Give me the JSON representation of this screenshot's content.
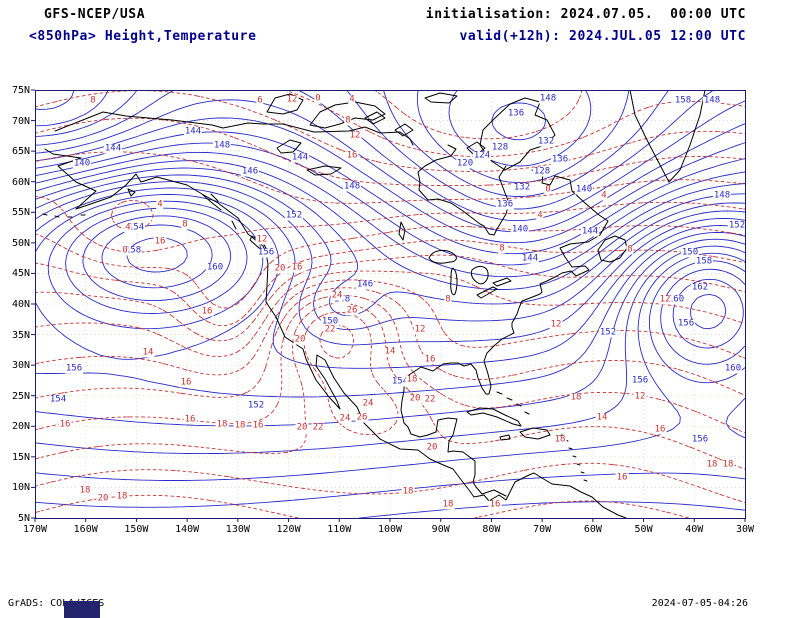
{
  "header": {
    "model": "GFS-NCEP/USA",
    "field": "<850hPa> Height,Temperature",
    "init": "initialisation: 2024.07.05.  00:00 UTC",
    "valid": "valid(+12h): 2024.JUL.05 12:00 UTC"
  },
  "map": {
    "y_ticks": [
      "75N",
      "70N",
      "65N",
      "60N",
      "55N",
      "50N",
      "45N",
      "40N",
      "35N",
      "30N",
      "25N",
      "20N",
      "15N",
      "10N",
      "5N"
    ],
    "x_ticks": [
      "170W",
      "160W",
      "150W",
      "140W",
      "130W",
      "120W",
      "110W",
      "100W",
      "90W",
      "80W",
      "70W",
      "60W",
      "50W",
      "40W",
      "30W"
    ]
  },
  "labels": {
    "height": [
      [
        "144",
        78,
        59
      ],
      [
        "140",
        47,
        74
      ],
      [
        "144",
        158,
        42
      ],
      [
        "148",
        187,
        56
      ],
      [
        "146",
        215,
        82
      ],
      [
        "144",
        265,
        68
      ],
      [
        "148",
        317,
        97
      ],
      [
        "152",
        259,
        126
      ],
      [
        "136",
        481,
        24
      ],
      [
        "132",
        511,
        52
      ],
      [
        "128",
        465,
        58
      ],
      [
        "124",
        447,
        66
      ],
      [
        "120",
        430,
        74
      ],
      [
        "136",
        525,
        70
      ],
      [
        "140",
        549,
        100
      ],
      [
        "144",
        555,
        142
      ],
      [
        "148",
        513,
        9
      ],
      [
        "158",
        648,
        11
      ],
      [
        "148",
        677,
        11
      ],
      [
        "154",
        101,
        138
      ],
      [
        "158",
        98,
        161
      ],
      [
        "160",
        180,
        178
      ],
      [
        "156",
        231,
        163
      ],
      [
        "152",
        221,
        316
      ],
      [
        "156",
        39,
        279
      ],
      [
        "154",
        23,
        310
      ],
      [
        "150",
        655,
        163
      ],
      [
        "158",
        669,
        172
      ],
      [
        "162",
        665,
        198
      ],
      [
        "160",
        641,
        210
      ],
      [
        "152",
        702,
        136
      ],
      [
        "148",
        687,
        106
      ],
      [
        "156",
        651,
        234
      ],
      [
        "152",
        573,
        243
      ],
      [
        "156",
        605,
        291
      ],
      [
        "154",
        365,
        292
      ],
      [
        "150",
        295,
        232
      ],
      [
        "148",
        307,
        210
      ],
      [
        "146",
        330,
        195
      ],
      [
        "144",
        495,
        169
      ],
      [
        "140",
        485,
        140
      ],
      [
        "136",
        470,
        115
      ],
      [
        "132",
        487,
        98
      ],
      [
        "128",
        507,
        82
      ],
      [
        "160",
        698,
        279
      ],
      [
        "156",
        665,
        350
      ]
    ],
    "temp": [
      [
        "8",
        58,
        11
      ],
      [
        "6",
        225,
        11
      ],
      [
        "12",
        257,
        10
      ],
      [
        "0",
        283,
        9
      ],
      [
        "4",
        317,
        10
      ],
      [
        "8",
        313,
        31
      ],
      [
        "12",
        320,
        46
      ],
      [
        "16",
        317,
        66
      ],
      [
        "4",
        93,
        138
      ],
      [
        "0",
        90,
        161
      ],
      [
        "4",
        125,
        115
      ],
      [
        "8",
        150,
        135
      ],
      [
        "12",
        227,
        150
      ],
      [
        "16",
        125,
        152
      ],
      [
        "16",
        262,
        178
      ],
      [
        "20",
        245,
        179
      ],
      [
        "24",
        302,
        206
      ],
      [
        "26",
        317,
        221
      ],
      [
        "22",
        295,
        240
      ],
      [
        "20",
        265,
        250
      ],
      [
        "16",
        172,
        222
      ],
      [
        "14",
        113,
        263
      ],
      [
        "16",
        151,
        293
      ],
      [
        "16",
        30,
        335
      ],
      [
        "18",
        50,
        401
      ],
      [
        "20",
        68,
        409
      ],
      [
        "18",
        87,
        407
      ],
      [
        "16",
        155,
        330
      ],
      [
        "18",
        187,
        335
      ],
      [
        "18",
        205,
        336
      ],
      [
        "16",
        223,
        336
      ],
      [
        "20",
        267,
        338
      ],
      [
        "22",
        283,
        338
      ],
      [
        "24",
        310,
        329
      ],
      [
        "26",
        327,
        328
      ],
      [
        "20",
        380,
        309
      ],
      [
        "22",
        395,
        310
      ],
      [
        "18",
        373,
        402
      ],
      [
        "18",
        413,
        415
      ],
      [
        "16",
        460,
        415
      ],
      [
        "18",
        525,
        350
      ],
      [
        "14",
        567,
        328
      ],
      [
        "12",
        605,
        307
      ],
      [
        "16",
        625,
        340
      ],
      [
        "18",
        541,
        308
      ],
      [
        "18",
        677,
        375
      ],
      [
        "18",
        693,
        375
      ],
      [
        "16",
        587,
        388
      ],
      [
        "12",
        521,
        235
      ],
      [
        "8",
        467,
        159
      ],
      [
        "4",
        505,
        126
      ],
      [
        "0",
        513,
        100
      ],
      [
        "14",
        355,
        262
      ],
      [
        "12",
        385,
        240
      ],
      [
        "8",
        413,
        210
      ],
      [
        "16",
        395,
        270
      ],
      [
        "18",
        377,
        290
      ],
      [
        "4",
        569,
        106
      ],
      [
        "8",
        595,
        160
      ],
      [
        "12",
        630,
        210
      ],
      [
        "24",
        333,
        314
      ],
      [
        "20",
        397,
        358
      ]
    ]
  },
  "colors": {
    "height_contour": "#2a2ac8",
    "temp_contour": "#c83232",
    "coast": "#000000",
    "frame": "#1a1a70",
    "grid": "#d8d8c0",
    "navy_text": "#00008b",
    "block": "#24246e"
  },
  "footer": {
    "credit": "GrADS: COLA/IGES",
    "timestamp": "2024-07-05-04:26"
  }
}
